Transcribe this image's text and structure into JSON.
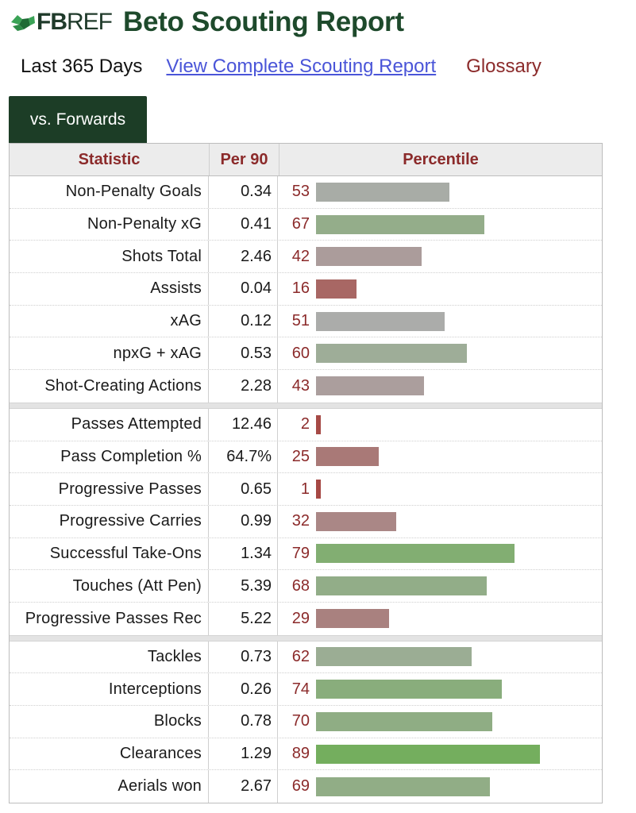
{
  "header": {
    "logo_fb": "FB",
    "logo_ref": "REF",
    "title": "Beto Scouting Report"
  },
  "subnav": {
    "period": "Last 365 Days",
    "complete_link": "View Complete Scouting Report",
    "glossary": "Glossary"
  },
  "tab": {
    "label": "vs. Forwards"
  },
  "table": {
    "headers": {
      "statistic": "Statistic",
      "per90": "Per 90",
      "percentile": "Percentile"
    },
    "groups": [
      [
        {
          "stat": "Non-Penalty Goals",
          "per90": "0.34",
          "pct": "53"
        },
        {
          "stat": "Non-Penalty xG",
          "per90": "0.41",
          "pct": "67"
        },
        {
          "stat": "Shots Total",
          "per90": "2.46",
          "pct": "42"
        },
        {
          "stat": "Assists",
          "per90": "0.04",
          "pct": "16"
        },
        {
          "stat": "xAG",
          "per90": "0.12",
          "pct": "51"
        },
        {
          "stat": "npxG + xAG",
          "per90": "0.53",
          "pct": "60"
        },
        {
          "stat": "Shot-Creating Actions",
          "per90": "2.28",
          "pct": "43"
        }
      ],
      [
        {
          "stat": "Passes Attempted",
          "per90": "12.46",
          "pct": "2"
        },
        {
          "stat": "Pass Completion %",
          "per90": "64.7%",
          "pct": "25"
        },
        {
          "stat": "Progressive Passes",
          "per90": "0.65",
          "pct": "1"
        },
        {
          "stat": "Progressive Carries",
          "per90": "0.99",
          "pct": "32"
        },
        {
          "stat": "Successful Take-Ons",
          "per90": "1.34",
          "pct": "79"
        },
        {
          "stat": "Touches (Att Pen)",
          "per90": "5.39",
          "pct": "68"
        },
        {
          "stat": "Progressive Passes Rec",
          "per90": "5.22",
          "pct": "29"
        }
      ],
      [
        {
          "stat": "Tackles",
          "per90": "0.73",
          "pct": "62"
        },
        {
          "stat": "Interceptions",
          "per90": "0.26",
          "pct": "74"
        },
        {
          "stat": "Blocks",
          "per90": "0.78",
          "pct": "70"
        },
        {
          "stat": "Clearances",
          "per90": "1.29",
          "pct": "89"
        },
        {
          "stat": "Aerials won",
          "per90": "2.67",
          "pct": "69"
        }
      ]
    ]
  },
  "colors": {
    "brand_green": "#1c3d26",
    "accent_red": "#8b2a2a",
    "link_blue": "#4a55d8"
  }
}
